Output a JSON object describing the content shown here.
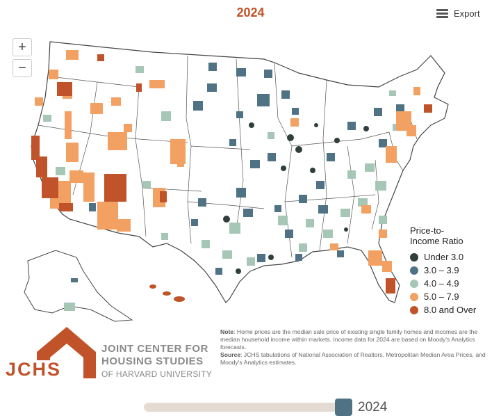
{
  "title": "2024",
  "export_label": "Export",
  "zoom": {
    "in_label": "+",
    "out_label": "−"
  },
  "legend": {
    "title_line1": "Price-to-",
    "title_line2": "Income Ratio",
    "items": [
      {
        "label": "Under 3.0",
        "color": "#2e3f3c"
      },
      {
        "label": "3.0 – 3.9",
        "color": "#4f7384"
      },
      {
        "label": "4.0 – 4.9",
        "color": "#a6c7b6"
      },
      {
        "label": "5.0 – 7.9",
        "color": "#f3a163"
      },
      {
        "label": "8.0 and Over",
        "color": "#c0532a"
      }
    ]
  },
  "note": {
    "note_label": "Note",
    "note_text": ": Home prices are the median sale price of existing single family homes and incomes are the median household income within markets. Income data for 2024 are based on Moody's Analytics forecasts.",
    "source_label": "Source",
    "source_text": ": JCHS tabulations of National Association of Realtors, Metropolitan Median Area Prices, and Moody's Analytics estimates."
  },
  "logo": {
    "acronym": "JCHS",
    "line1": "JOINT CENTER FOR",
    "line2": "HOUSING STUDIES",
    "line3": "OF HARVARD UNIVERSITY",
    "color": "#c0532a"
  },
  "slider": {
    "value_label": "2024",
    "position": 1.0
  },
  "icons": [
    "hamburger-menu-icon",
    "zoom-in-icon",
    "zoom-out-icon",
    "house-logo-icon"
  ]
}
